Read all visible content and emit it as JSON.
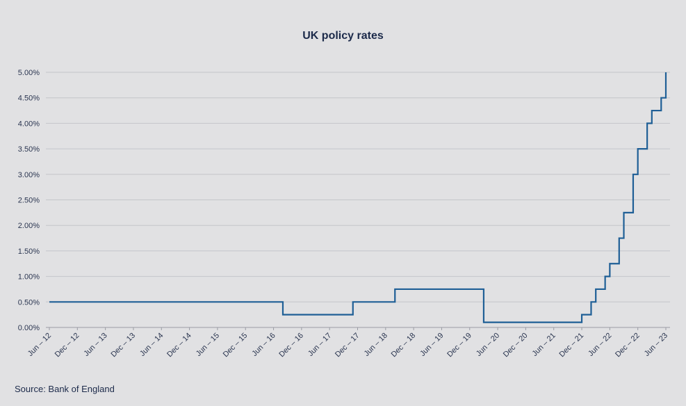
{
  "chart_data": {
    "type": "line",
    "title": "UK policy rates",
    "source": "Source: Bank of England",
    "xlabel": "",
    "ylabel": "",
    "ylim": [
      0,
      5
    ],
    "y_ticks": [
      "0.00%",
      "0.50%",
      "1.00%",
      "1.50%",
      "2.00%",
      "2.50%",
      "3.00%",
      "3.50%",
      "4.00%",
      "4.50%",
      "5.00%"
    ],
    "x_ticks": [
      "Jun – 12",
      "Dec – 12",
      "Jun – 13",
      "Dec – 13",
      "Jun – 14",
      "Dec – 14",
      "Jun – 15",
      "Dec – 15",
      "Jun – 16",
      "Dec – 16",
      "Jun – 17",
      "Dec – 17",
      "Jun – 18",
      "Dec – 18",
      "Jun – 19",
      "Dec – 19",
      "Jun – 20",
      "Dec – 20",
      "Jun – 21",
      "Dec – 21",
      "Jun – 22",
      "Dec – 22",
      "Jun – 23"
    ],
    "grid": true,
    "line_color": "#1f5f96",
    "step": true,
    "series": [
      {
        "points": [
          {
            "x": "Jun 2012",
            "y": 0.5
          },
          {
            "x": "Aug 2016",
            "y": 0.25
          },
          {
            "x": "Nov 2017",
            "y": 0.5
          },
          {
            "x": "Aug 2018",
            "y": 0.75
          },
          {
            "x": "Mar 2020",
            "y": 0.1
          },
          {
            "x": "Dec 2021",
            "y": 0.25
          },
          {
            "x": "Feb 2022",
            "y": 0.5
          },
          {
            "x": "Mar 2022",
            "y": 0.75
          },
          {
            "x": "May 2022",
            "y": 1.0
          },
          {
            "x": "Jun 2022",
            "y": 1.25
          },
          {
            "x": "Aug 2022",
            "y": 1.75
          },
          {
            "x": "Sep 2022",
            "y": 2.25
          },
          {
            "x": "Nov 2022",
            "y": 3.0
          },
          {
            "x": "Dec 2022",
            "y": 3.5
          },
          {
            "x": "Feb 2023",
            "y": 4.0
          },
          {
            "x": "Mar 2023",
            "y": 4.25
          },
          {
            "x": "May 2023",
            "y": 4.5
          },
          {
            "x": "Jun 2023",
            "y": 5.0
          }
        ]
      }
    ]
  }
}
